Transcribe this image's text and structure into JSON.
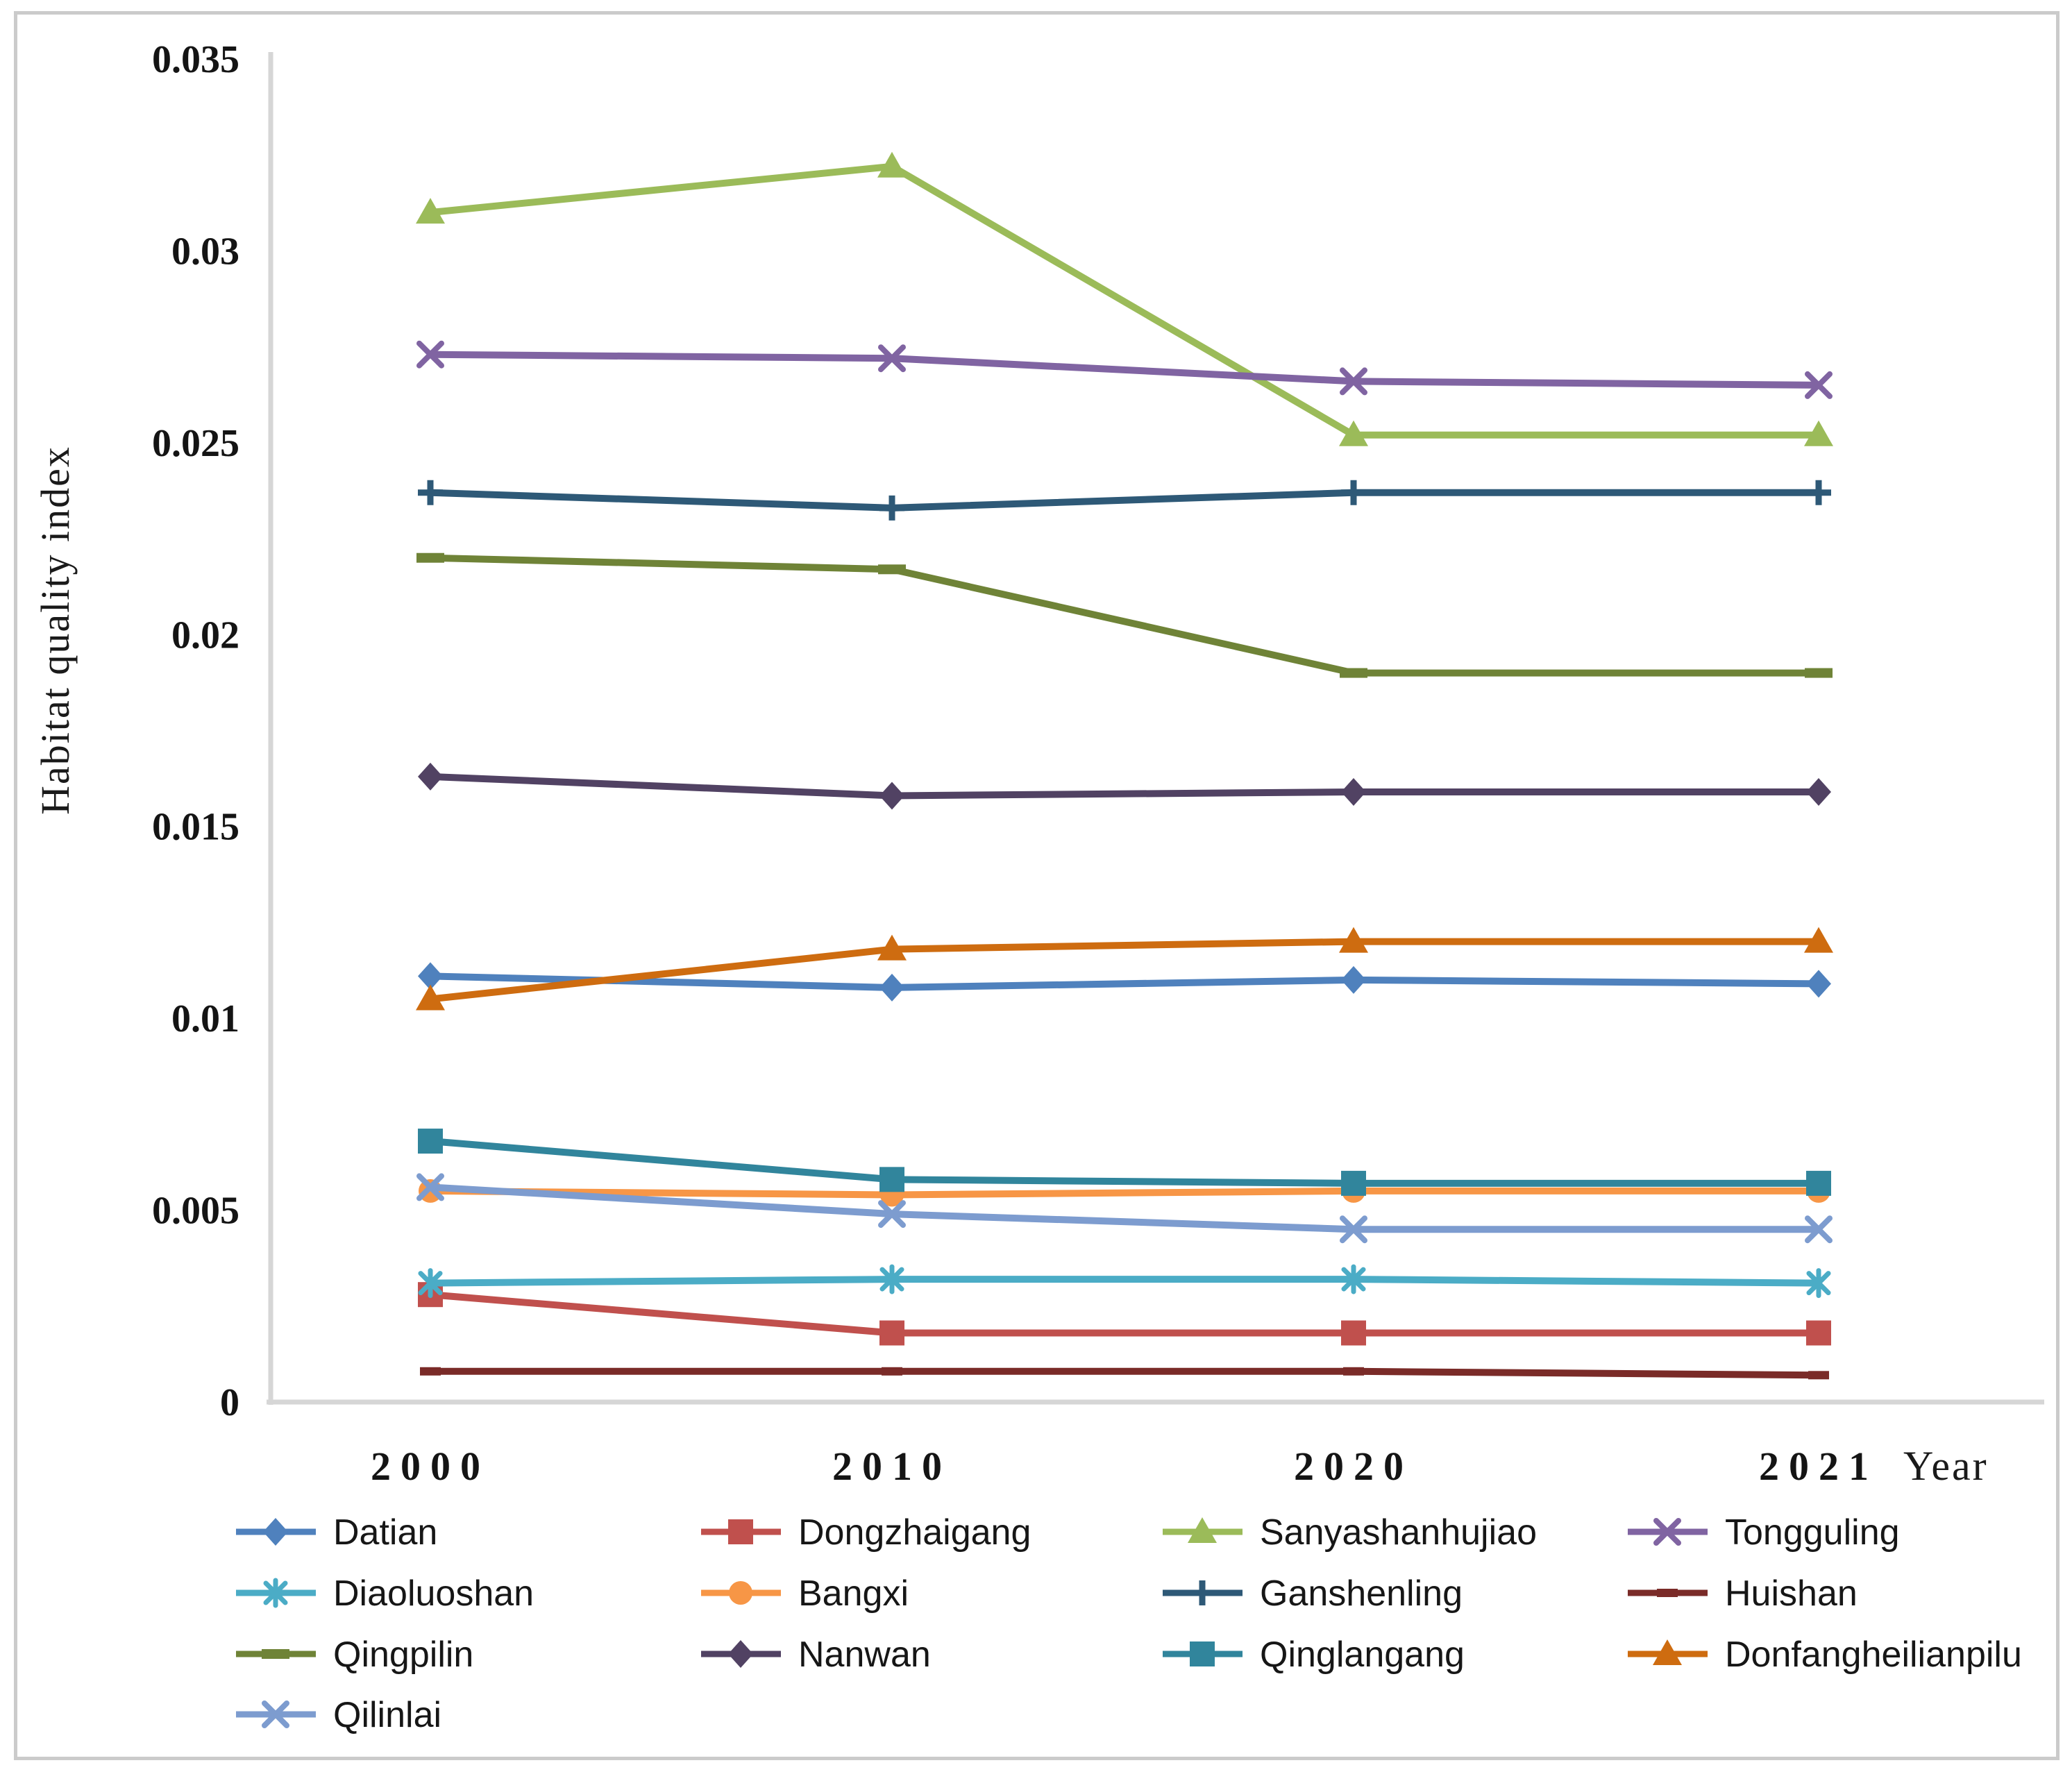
{
  "figure": {
    "background": "#ffffff",
    "border_color": "#cbcbcb"
  },
  "chart_data": {
    "type": "line",
    "title": "",
    "xlabel": "Year",
    "ylabel": "Habitat quality index",
    "categories": [
      "2000",
      "2010",
      "2020",
      "2021"
    ],
    "ylim": [
      0,
      0.035
    ],
    "ytick_step": 0.005,
    "ytick_labels": [
      "0",
      "0.005",
      "0.01",
      "0.015",
      "0.02",
      "0.025",
      "0.03",
      "0.035"
    ],
    "grid": false,
    "legend_position": "bottom",
    "axis_color": "#d6d6d6",
    "series": [
      {
        "name": "Datian",
        "color": "#4F81BD",
        "marker": "diamond",
        "values": [
          0.0111,
          0.0108,
          0.011,
          0.0109
        ]
      },
      {
        "name": "Dongzhaigang",
        "color": "#C0504D",
        "marker": "square",
        "values": [
          0.0028,
          0.0018,
          0.0018,
          0.0018
        ]
      },
      {
        "name": "Sanyashanhujiao",
        "color": "#9BBB59",
        "marker": "triangle",
        "values": [
          0.031,
          0.0322,
          0.0252,
          0.0252
        ]
      },
      {
        "name": "Tongguling",
        "color": "#8064A2",
        "marker": "x",
        "values": [
          0.0273,
          0.0272,
          0.0266,
          0.0265
        ]
      },
      {
        "name": "Diaoluoshan",
        "color": "#4BACC6",
        "marker": "asterisk",
        "values": [
          0.0031,
          0.0032,
          0.0032,
          0.0031
        ]
      },
      {
        "name": "Bangxi",
        "color": "#F79646",
        "marker": "circle",
        "values": [
          0.0055,
          0.0054,
          0.0055,
          0.0055
        ]
      },
      {
        "name": "Ganshenling",
        "color": "#2E5977",
        "marker": "plus",
        "values": [
          0.0237,
          0.0233,
          0.0237,
          0.0237
        ]
      },
      {
        "name": "Huishan",
        "color": "#7A2B28",
        "marker": "dash",
        "values": [
          0.0008,
          0.0008,
          0.0008,
          0.0007
        ]
      },
      {
        "name": "Qingpilin",
        "color": "#6F8337",
        "marker": "dash-long",
        "values": [
          0.022,
          0.0217,
          0.019,
          0.019
        ]
      },
      {
        "name": "Nanwan",
        "color": "#514263",
        "marker": "diamond",
        "values": [
          0.0163,
          0.0158,
          0.0159,
          0.0159
        ]
      },
      {
        "name": "Qinglangang",
        "color": "#31859C",
        "marker": "square",
        "values": [
          0.0068,
          0.0058,
          0.0057,
          0.0057
        ]
      },
      {
        "name": "Donfangheilianpilu",
        "color": "#CE6C10",
        "marker": "triangle",
        "values": [
          0.0105,
          0.0118,
          0.012,
          0.012
        ]
      },
      {
        "name": "Qilinlai",
        "color": "#7D9CCF",
        "marker": "x",
        "values": [
          0.0056,
          0.0049,
          0.0045,
          0.0045
        ]
      }
    ]
  }
}
